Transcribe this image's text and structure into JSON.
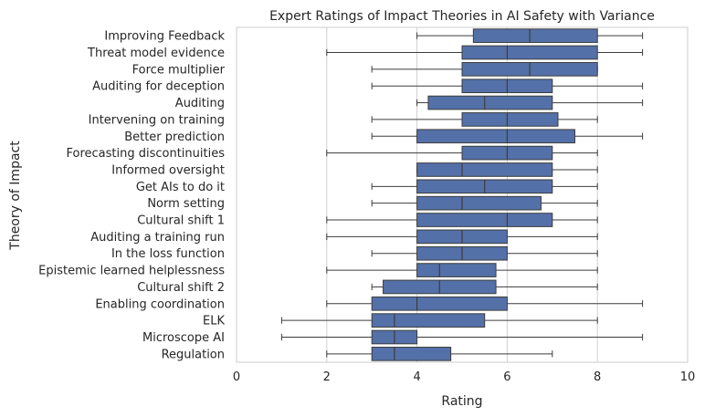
{
  "chart_data": {
    "type": "boxplot",
    "orientation": "horizontal",
    "title": "Expert Ratings of Impact Theories in AI Safety with Variance",
    "xlabel": "Rating",
    "ylabel": "Theory of Impact",
    "xlim": [
      0,
      10
    ],
    "xticks": [
      0,
      2,
      4,
      6,
      8,
      10
    ],
    "grid": "vertical",
    "colors": {
      "box": "#5470a8",
      "line": "#3d3d3d",
      "grid": "#d0d0d0",
      "frame": "#cccccc"
    },
    "categories": [
      "Improving Feedback",
      "Threat model evidence",
      "Force multiplier",
      "Auditing for deception",
      "Auditing",
      "Intervening on training",
      "Better prediction",
      "Forecasting discontinuities",
      "Informed oversight",
      "Get AIs to do it",
      "Norm setting",
      "Cultural shift 1",
      "Auditing a training run",
      "In the loss function",
      "Epistemic learned helplessness",
      "Cultural shift 2",
      "Enabling coordination",
      "ELK",
      "Microscope AI",
      "Regulation"
    ],
    "boxes": [
      {
        "min": 4,
        "q1": 5.25,
        "median": 6.5,
        "q3": 8,
        "max": 9
      },
      {
        "min": 2,
        "q1": 5,
        "median": 6,
        "q3": 8,
        "max": 9
      },
      {
        "min": 3,
        "q1": 5,
        "median": 6.5,
        "q3": 8,
        "max": 8
      },
      {
        "min": 3,
        "q1": 5,
        "median": 6,
        "q3": 7,
        "max": 9
      },
      {
        "min": 4,
        "q1": 4.25,
        "median": 5.5,
        "q3": 7,
        "max": 9
      },
      {
        "min": 3,
        "q1": 5,
        "median": 6,
        "q3": 7.125,
        "max": 8
      },
      {
        "min": 3,
        "q1": 4,
        "median": 6,
        "q3": 7.5,
        "max": 9
      },
      {
        "min": 2,
        "q1": 5,
        "median": 6,
        "q3": 7,
        "max": 8
      },
      {
        "min": 4,
        "q1": 4,
        "median": 5,
        "q3": 7,
        "max": 8
      },
      {
        "min": 3,
        "q1": 4,
        "median": 5.5,
        "q3": 7,
        "max": 8
      },
      {
        "min": 3,
        "q1": 4,
        "median": 5,
        "q3": 6.75,
        "max": 8
      },
      {
        "min": 2,
        "q1": 4,
        "median": 6,
        "q3": 7,
        "max": 8
      },
      {
        "min": 2,
        "q1": 4,
        "median": 5,
        "q3": 6,
        "max": 8
      },
      {
        "min": 3,
        "q1": 4,
        "median": 5,
        "q3": 6,
        "max": 8
      },
      {
        "min": 2,
        "q1": 4,
        "median": 4.5,
        "q3": 5.75,
        "max": 8
      },
      {
        "min": 3,
        "q1": 3.25,
        "median": 4.5,
        "q3": 5.75,
        "max": 8
      },
      {
        "min": 2,
        "q1": 3,
        "median": 4,
        "q3": 6,
        "max": 9
      },
      {
        "min": 1,
        "q1": 3,
        "median": 3.5,
        "q3": 5.5,
        "max": 8
      },
      {
        "min": 1,
        "q1": 3,
        "median": 3.5,
        "q3": 4,
        "max": 9
      },
      {
        "min": 2,
        "q1": 3,
        "median": 3.5,
        "q3": 4.75,
        "max": 7
      }
    ]
  }
}
